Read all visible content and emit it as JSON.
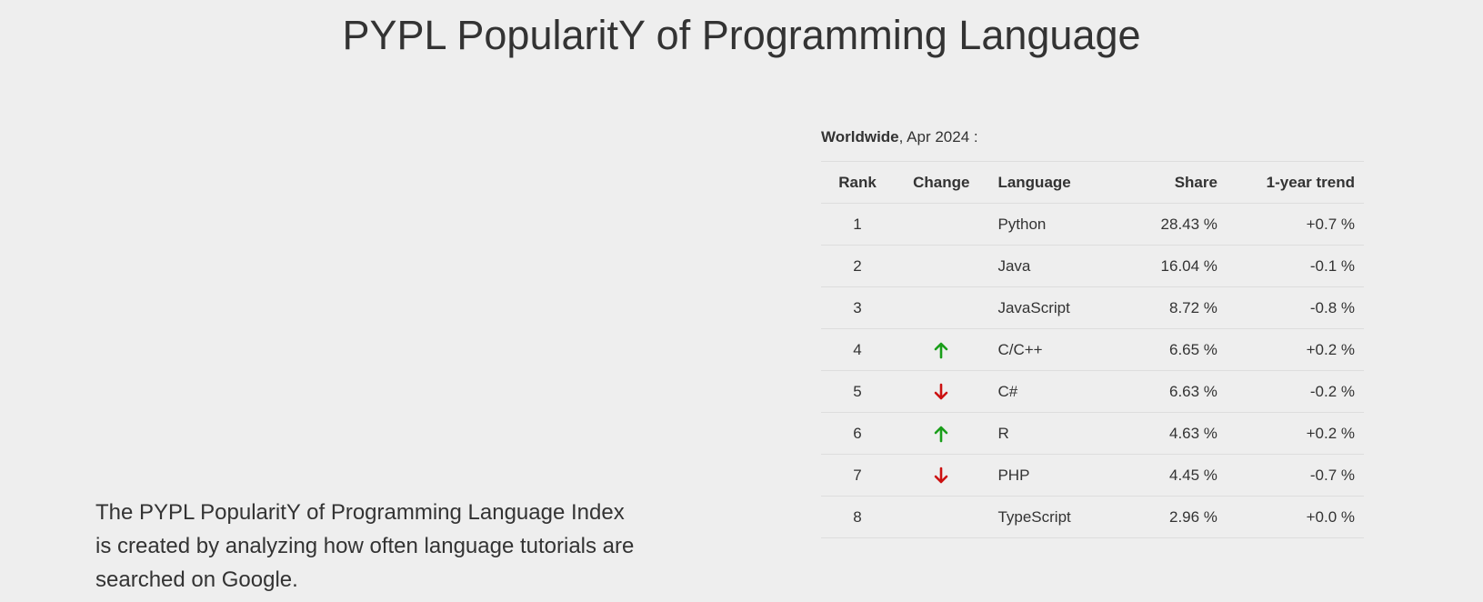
{
  "page": {
    "title": "PYPL PopularitY of Programming Language",
    "description": "The PYPL PopularitY of Programming Language Index is created by analyzing how often language tutorials are searched on Google."
  },
  "table": {
    "caption_bold": "Worldwide",
    "caption_rest": ", Apr 2024 :",
    "headers": {
      "rank": "Rank",
      "change": "Change",
      "language": "Language",
      "share": "Share",
      "trend": "1-year trend"
    },
    "rows": [
      {
        "rank": "1",
        "change": "none",
        "language": "Python",
        "share": "28.43 %",
        "trend": "+0.7 %"
      },
      {
        "rank": "2",
        "change": "none",
        "language": "Java",
        "share": "16.04 %",
        "trend": "-0.1 %"
      },
      {
        "rank": "3",
        "change": "none",
        "language": "JavaScript",
        "share": "8.72 %",
        "trend": "-0.8 %"
      },
      {
        "rank": "4",
        "change": "up",
        "language": "C/C++",
        "share": "6.65 %",
        "trend": "+0.2 %"
      },
      {
        "rank": "5",
        "change": "down",
        "language": "C#",
        "share": "6.63 %",
        "trend": "-0.2 %"
      },
      {
        "rank": "6",
        "change": "up",
        "language": "R",
        "share": "4.63 %",
        "trend": "+0.2 %"
      },
      {
        "rank": "7",
        "change": "down",
        "language": "PHP",
        "share": "4.45 %",
        "trend": "-0.7 %"
      },
      {
        "rank": "8",
        "change": "none",
        "language": "TypeScript",
        "share": "2.96 %",
        "trend": "+0.0 %"
      }
    ]
  },
  "colors": {
    "background": "#eeeeee",
    "text": "#333333",
    "arrow_up": "#1a9e1a",
    "arrow_down": "#cc1111",
    "row_border": "#dddddd"
  },
  "icons": {
    "up": "arrow-up-icon",
    "down": "arrow-down-icon"
  }
}
